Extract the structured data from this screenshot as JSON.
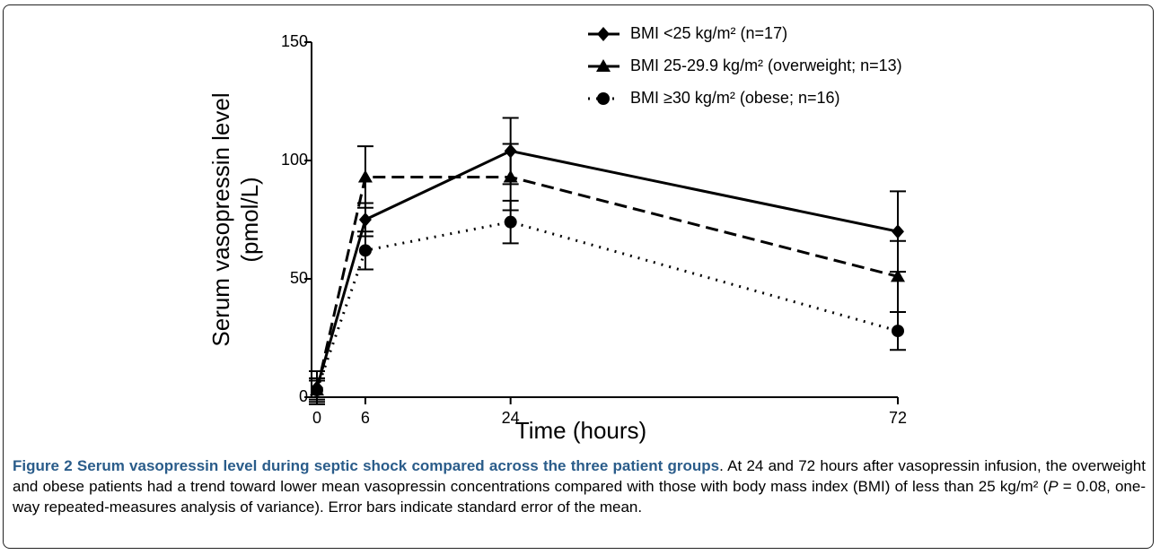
{
  "chart_data": {
    "type": "line",
    "x_label": "Time (hours)",
    "y_label": [
      "Serum vasopressin level",
      "(pmol/L)"
    ],
    "x": [
      0,
      6,
      24,
      72
    ],
    "xlim": [
      0,
      72
    ],
    "xticks": [
      0,
      6,
      24,
      72
    ],
    "ylim": [
      0,
      150
    ],
    "yticks": [
      0,
      50,
      100,
      150
    ],
    "legend_position": "upper right",
    "series": [
      {
        "name": "BMI <25 kg/m² (n=17)",
        "color": "#000000",
        "line_style": "solid",
        "marker": "diamond",
        "values": [
          4,
          75,
          104,
          70
        ],
        "errors": [
          7,
          7,
          14,
          17
        ]
      },
      {
        "name": "BMI 25-29.9 kg/m² (overweight; n=13)",
        "color": "#000000",
        "line_style": "dashed",
        "marker": "triangle",
        "values": [
          3,
          93,
          93,
          51
        ],
        "errors": [
          5,
          13,
          14,
          15
        ]
      },
      {
        "name": "BMI ≥30 kg/m² (obese; n=16)",
        "color": "#000000",
        "line_style": "dotted",
        "marker": "circle",
        "values": [
          3,
          62,
          74,
          28
        ],
        "errors": [
          4,
          8,
          9,
          8
        ]
      }
    ]
  },
  "caption": {
    "label": "Figure 2",
    "title": "Serum vasopressin level during septic shock compared across the three patient groups",
    "text_1": ". At 24 and 72 hours after vasopressin infusion, the overweight and obese patients had a trend toward lower mean vasopressin concentrations compared with those with body mass index (BMI) of less than 25 kg/m² (",
    "p": "P",
    "text_2": " = 0.08, one-way repeated-measures analysis of variance). Error bars indicate standard error of the mean."
  }
}
